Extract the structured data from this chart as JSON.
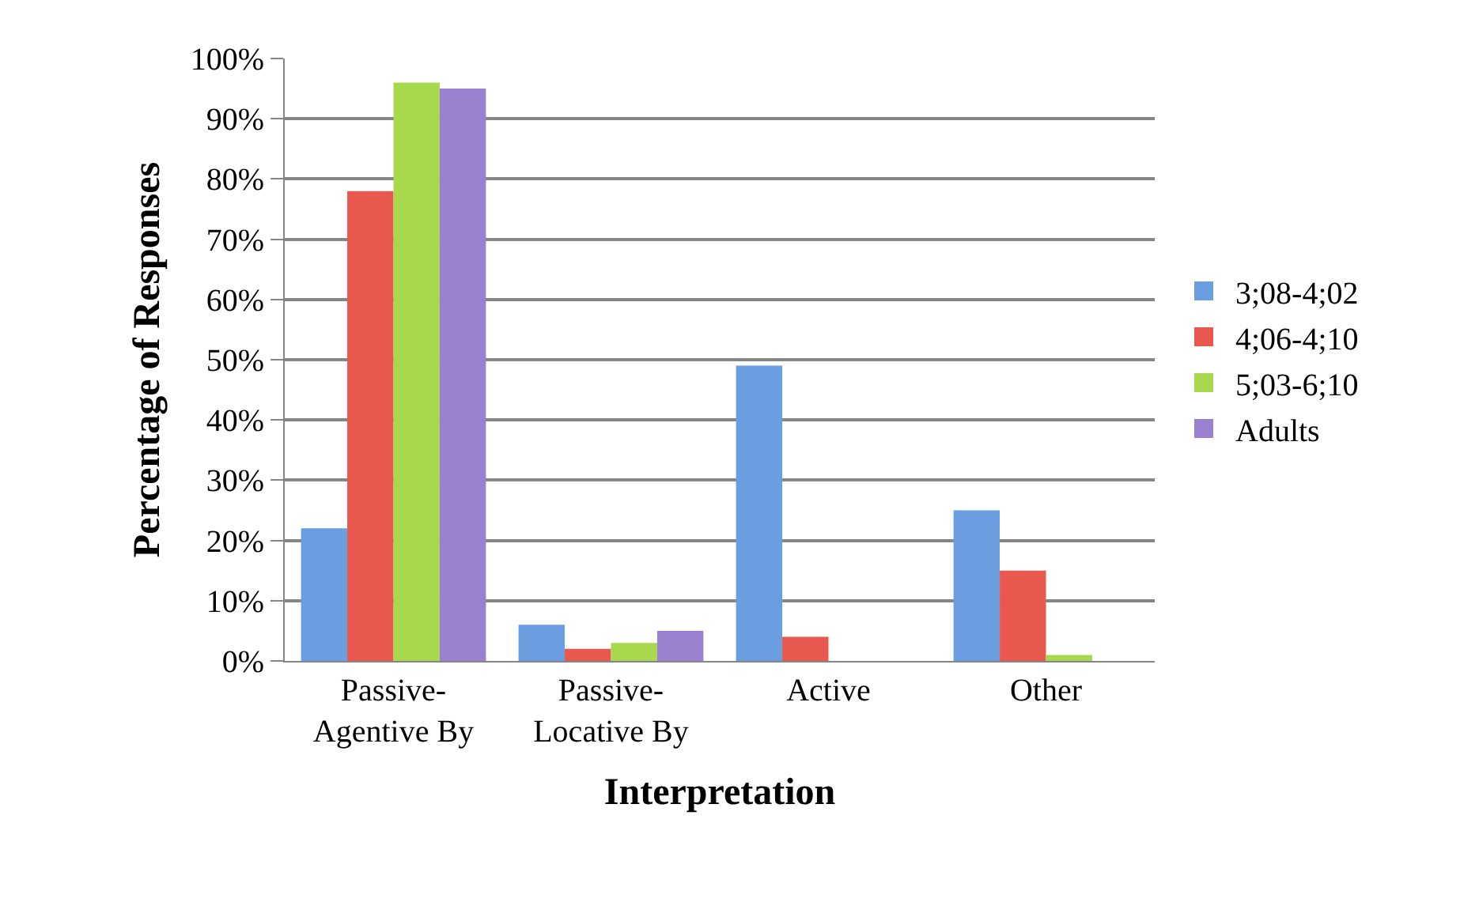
{
  "chart_data": {
    "type": "bar",
    "xlabel": "Interpretation",
    "ylabel": "Percentage of Responses",
    "categories": [
      "Passive-\nAgentive By",
      "Passive-\nLocative By",
      "Active",
      "Other"
    ],
    "series": [
      {
        "name": "3;08-4;02",
        "color": "#6a9ee0",
        "values": [
          22,
          6,
          49,
          25
        ]
      },
      {
        "name": "4;06-4;10",
        "color": "#e8584f",
        "values": [
          78,
          2,
          4,
          15
        ]
      },
      {
        "name": "5;03-6;10",
        "color": "#a8d84e",
        "values": [
          96,
          3,
          0,
          1
        ]
      },
      {
        "name": "Adults",
        "color": "#9b80cf",
        "values": [
          95,
          5,
          0,
          0
        ]
      }
    ],
    "ylim": [
      0,
      100
    ],
    "yticks": [
      {
        "value": 0,
        "label": "0%"
      },
      {
        "value": 10,
        "label": "10%"
      },
      {
        "value": 20,
        "label": "20%"
      },
      {
        "value": 30,
        "label": "30%"
      },
      {
        "value": 40,
        "label": "40%"
      },
      {
        "value": 50,
        "label": "50%"
      },
      {
        "value": 60,
        "label": "60%"
      },
      {
        "value": 70,
        "label": "70%"
      },
      {
        "value": 80,
        "label": "80%"
      },
      {
        "value": 90,
        "label": "90%"
      },
      {
        "value": 100,
        "label": "100%"
      }
    ],
    "grid": "y",
    "legend": "right"
  }
}
